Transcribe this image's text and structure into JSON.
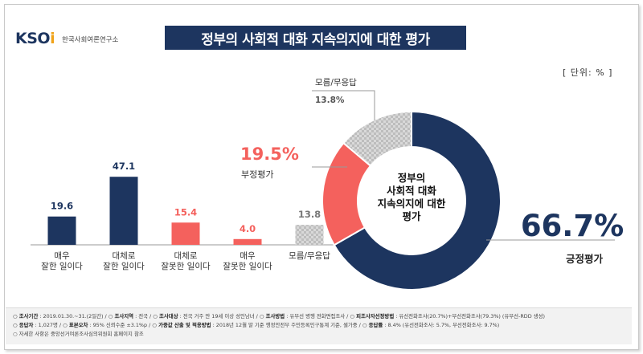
{
  "logo": {
    "main": "KSOI",
    "sub": "한국사회여론연구소"
  },
  "title": "정부의 사회적 대화 지속의지에 대한 평가",
  "unit": "[ 단위: % ]",
  "chart_data": [
    {
      "type": "bar",
      "categories": [
        "매우\n잘한 일이다",
        "대체로\n잘한 일이다",
        "대체로\n잘못한 일이다",
        "매우\n잘못한 일이다",
        "모름/무응답"
      ],
      "values": [
        19.6,
        47.1,
        15.4,
        4.0,
        13.8
      ],
      "value_labels": [
        "19.6",
        "47.1",
        "15.4",
        "4.0",
        "13.8"
      ],
      "colors": [
        "#1d355f",
        "#1d355f",
        "#f4615d",
        "#f4615d",
        "#c8c8c8"
      ],
      "ylim": [
        0,
        50
      ]
    },
    {
      "type": "pie",
      "donut": true,
      "center_label": "정부의\n사회적 대화\n지속의지에 대한\n평가",
      "slices": [
        {
          "label": "긍정평가",
          "value": 66.7,
          "display": "66.7%",
          "color": "#1d355f"
        },
        {
          "label": "부정평가",
          "value": 19.5,
          "display": "19.5%",
          "color": "#f4615d"
        },
        {
          "label": "모름/무응답",
          "value": 13.8,
          "display": "13.8%",
          "color": "#c8c8c8"
        }
      ]
    }
  ],
  "footer": {
    "line1": [
      {
        "k": "조사기간",
        "v": "2019.01.30.~31.(2일간)"
      },
      {
        "k": "조사지역",
        "v": "전국"
      },
      {
        "k": "조사대상",
        "v": "전국 거주 만 19세 이상 성인남녀"
      },
      {
        "k": "조사방법",
        "v": "유무선 병행 전화면접조사"
      },
      {
        "k": "피조사자선정방법",
        "v": "유선전화조사(20.7%)+무선전화조사(79.3%) (유무선-RDD 생성)"
      }
    ],
    "line2": [
      {
        "k": "응답자",
        "v": "1,027명"
      },
      {
        "k": "표본오차",
        "v": "95% 신뢰수준 ±3.1%p"
      },
      {
        "k": "가중값 산출 및 적용방법",
        "v": "2018년 12월 말 기준 행정안전부 주민등록인구통계 기준, 셀가중"
      },
      {
        "k": "응답률",
        "v": "8.4% (유선전화조사: 5.7%, 무선전화조사: 9.7%)"
      }
    ],
    "line3": "자세한 사항은 중앙선거여론조사심의위원회 홈페이지 참조"
  }
}
